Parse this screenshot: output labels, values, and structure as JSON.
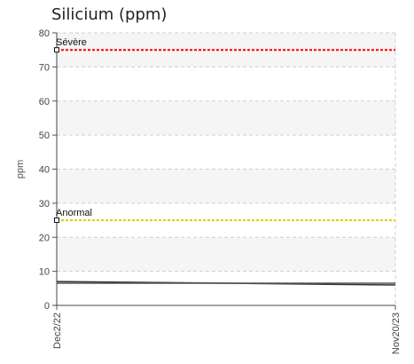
{
  "chart_data": {
    "type": "line",
    "title": "Silicium (ppm)",
    "ylabel": "ppm",
    "xlabel": "",
    "ylim": [
      0,
      80
    ],
    "yticks": [
      0,
      10,
      20,
      30,
      40,
      50,
      60,
      70,
      80
    ],
    "x": [
      "Dec2/22",
      "Nov20/23"
    ],
    "series": [
      {
        "values": [
          7,
          6
        ],
        "color": "#333333"
      },
      {
        "values": [
          6.5,
          6.5
        ],
        "color": "#555555"
      }
    ],
    "thresholds": [
      {
        "label": "Sévère",
        "value": 75,
        "color": "#ff0000"
      },
      {
        "label": "Anormal",
        "value": 25,
        "color": "#e6c800"
      }
    ],
    "grid": true
  }
}
